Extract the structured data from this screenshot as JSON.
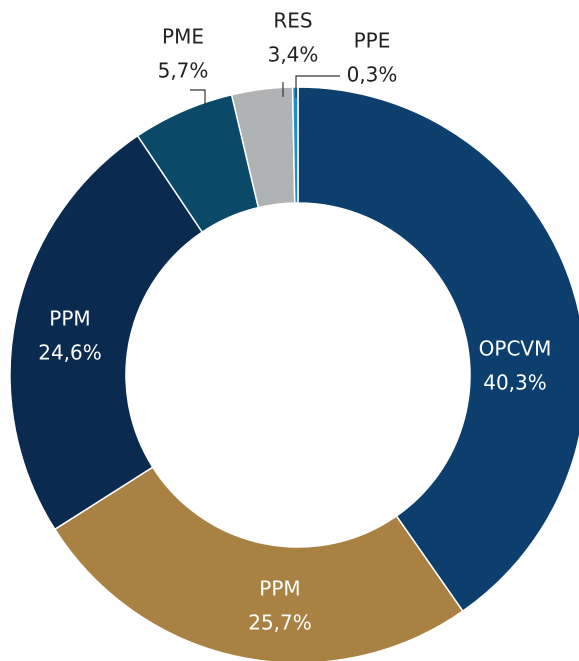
{
  "chart_data": {
    "type": "donut",
    "categories": [
      "OPCVM",
      "PPM",
      "PPM",
      "PME",
      "RES",
      "PPE"
    ],
    "values": [
      40.3,
      25.7,
      24.6,
      5.7,
      3.4,
      0.3
    ],
    "value_labels": [
      "40,3%",
      "25,7%",
      "24,6%",
      "5,7%",
      "3,4%",
      "0,3%"
    ],
    "colors": [
      "#0d3f6e",
      "#a98243",
      "#0a2a50",
      "#0a4a68",
      "#b0b2b4",
      "#1f8ec0"
    ]
  }
}
